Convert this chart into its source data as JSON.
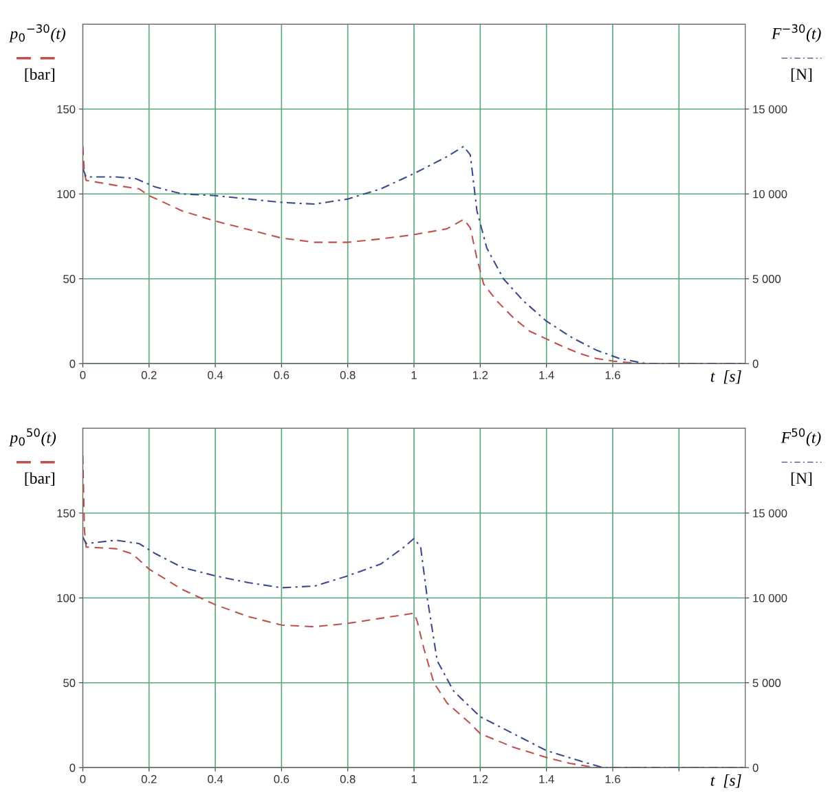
{
  "chart_data": [
    {
      "type": "line",
      "ylabel": "p$_{0}$$^{−30}$(t)\n[bar]",
      "y2label": "F$^{ −30}$(t)\n[N]",
      "xlabel": "t  [s]",
      "xlim": [
        0,
        2
      ],
      "xticks": [
        0,
        0.2,
        0.4,
        0.6,
        0.8,
        1,
        1.2,
        1.4,
        1.6,
        {
          "value": 1.8,
          "label": null
        }
      ],
      "ylim": [
        0,
        200
      ],
      "yticks": [
        0,
        50,
        100,
        150
      ],
      "y2lim": [
        0,
        20000
      ],
      "y2ticks": [
        0,
        {
          "value": 5000,
          "label": "5 000"
        },
        {
          "value": 10000,
          "label": "10 000"
        },
        {
          "value": 15000,
          "label": "15 000"
        }
      ],
      "grid": true,
      "series": [
        {
          "color": "#c0504d",
          "line_style": "dashed",
          "x": [
            0,
            0.005,
            0.01,
            0.1,
            0.17,
            0.2,
            0.3,
            0.4,
            0.5,
            0.6,
            0.7,
            0.8,
            0.9,
            1.0,
            1.1,
            1.15,
            1.17,
            1.19,
            1.21,
            1.25,
            1.3,
            1.35,
            1.4,
            1.45,
            1.5,
            1.55,
            1.6,
            1.68,
            2.0
          ],
          "values": [
            128,
            112,
            108,
            105,
            103,
            99,
            90,
            84,
            79,
            74,
            71.5,
            71.5,
            73.5,
            76,
            79.5,
            85,
            80,
            62,
            47,
            37,
            27,
            19,
            14.5,
            10,
            6,
            3,
            1.5,
            0,
            0
          ]
        },
        {
          "color": "#3a4a8c",
          "line_style": "dashdot",
          "axis": "y2",
          "x": [
            0,
            0.01,
            0.1,
            0.16,
            0.22,
            0.3,
            0.4,
            0.5,
            0.6,
            0.7,
            0.8,
            0.9,
            1.0,
            1.1,
            1.15,
            1.17,
            1.19,
            1.22,
            1.27,
            1.33,
            1.4,
            1.48,
            1.55,
            1.62,
            1.7,
            2.0
          ],
          "values": [
            11500,
            11000,
            11000,
            10900,
            10400,
            10000,
            9900,
            9700,
            9500,
            9400,
            9700,
            10300,
            11200,
            12200,
            12800,
            12300,
            9000,
            6800,
            5000,
            3700,
            2500,
            1500,
            800,
            300,
            0,
            0
          ]
        }
      ]
    },
    {
      "type": "line",
      "ylabel": "p$_{0}$$^{50}$(t)\n[bar]",
      "y2label": "F$^{ 50}$(t)\n[N]",
      "xlabel": "t  [s]",
      "xlim": [
        0,
        2
      ],
      "xticks": [
        0,
        0.2,
        0.4,
        0.6,
        0.8,
        1,
        1.2,
        1.4,
        1.6,
        {
          "value": 1.8,
          "label": null
        }
      ],
      "ylim": [
        0,
        200
      ],
      "yticks": [
        0,
        50,
        100,
        150
      ],
      "y2lim": [
        0,
        20000
      ],
      "y2ticks": [
        0,
        {
          "value": 5000,
          "label": "5 000"
        },
        {
          "value": 10000,
          "label": "10 000"
        },
        {
          "value": 15000,
          "label": "15 000"
        }
      ],
      "grid": true,
      "series": [
        {
          "color": "#c0504d",
          "line_style": "dashed",
          "x": [
            0,
            0.005,
            0.01,
            0.1,
            0.15,
            0.2,
            0.3,
            0.4,
            0.5,
            0.6,
            0.7,
            0.8,
            0.9,
            1.0,
            1.01,
            1.03,
            1.06,
            1.1,
            1.17,
            1.2,
            1.3,
            1.4,
            1.47,
            1.55,
            2.0
          ],
          "values": [
            184,
            140,
            130,
            129,
            126,
            117,
            105,
            96,
            89,
            84,
            83,
            85,
            88,
            91,
            86,
            70,
            50,
            38,
            26,
            20,
            12,
            6,
            2.5,
            0,
            0
          ]
        },
        {
          "color": "#3a4a8c",
          "line_style": "dashdot",
          "axis": "y2",
          "x": [
            0,
            0.01,
            0.1,
            0.17,
            0.22,
            0.3,
            0.4,
            0.5,
            0.6,
            0.7,
            0.8,
            0.9,
            0.97,
            1.0,
            1.02,
            1.04,
            1.07,
            1.12,
            1.2,
            1.3,
            1.4,
            1.5,
            1.57,
            2.0
          ],
          "values": [
            13600,
            13200,
            13400,
            13200,
            12600,
            11800,
            11300,
            10900,
            10600,
            10700,
            11300,
            12000,
            13000,
            13500,
            13000,
            10000,
            6300,
            4500,
            3000,
            2000,
            1000,
            400,
            0,
            0
          ]
        }
      ]
    }
  ]
}
